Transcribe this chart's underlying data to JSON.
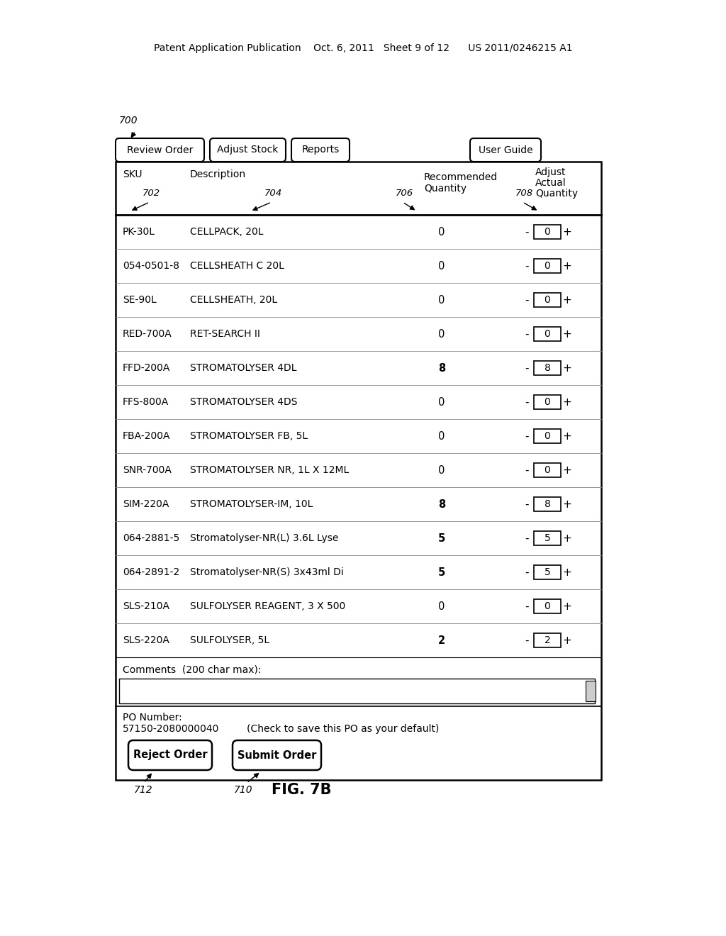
{
  "bg_color": "#ffffff",
  "figure_label": "FIG. 7B",
  "tab_labels": [
    "Review Order",
    "Adjust Stock",
    "Reports",
    "User Guide"
  ],
  "rows": [
    {
      "sku": "PK-30L",
      "desc": "CELLPACK, 20L",
      "qty": "0",
      "adj": "0"
    },
    {
      "sku": "054-0501-8",
      "desc": "CELLSHEATH C 20L",
      "qty": "0",
      "adj": "0"
    },
    {
      "sku": "SE-90L",
      "desc": "CELLSHEATH, 20L",
      "qty": "0",
      "adj": "0"
    },
    {
      "sku": "RED-700A",
      "desc": "RET-SEARCH II",
      "qty": "0",
      "adj": "0"
    },
    {
      "sku": "FFD-200A",
      "desc": "STROMATOLYSER 4DL",
      "qty": "8",
      "adj": "8"
    },
    {
      "sku": "FFS-800A",
      "desc": "STROMATOLYSER 4DS",
      "qty": "0",
      "adj": "0"
    },
    {
      "sku": "FBA-200A",
      "desc": "STROMATOLYSER FB, 5L",
      "qty": "0",
      "adj": "0"
    },
    {
      "sku": "SNR-700A",
      "desc": "STROMATOLYSER NR, 1L X 12ML",
      "qty": "0",
      "adj": "0"
    },
    {
      "sku": "SIM-220A",
      "desc": "STROMATOLYSER-IM, 10L",
      "qty": "8",
      "adj": "8"
    },
    {
      "sku": "064-2881-5",
      "desc": "Stromatolyser-NR(L) 3.6L Lyse",
      "qty": "5",
      "adj": "5"
    },
    {
      "sku": "064-2891-2",
      "desc": "Stromatolyser-NR(S) 3x43ml Di",
      "qty": "5",
      "adj": "5"
    },
    {
      "sku": "SLS-210A",
      "desc": "SULFOLYSER REAGENT, 3 X 500",
      "qty": "0",
      "adj": "0"
    },
    {
      "sku": "SLS-220A",
      "desc": "SULFOLYSER, 5L",
      "qty": "2",
      "adj": "2"
    }
  ],
  "comments_label": "Comments  (200 char max):",
  "po_label": "PO Number:",
  "po_number": "57150-2080000040",
  "po_check_text": "(Check to save this PO as your default)",
  "btn_reject": "Reject Order",
  "btn_submit": "Submit Order",
  "btn_reject_ref": "712",
  "btn_submit_ref": "710",
  "ref_700": "700",
  "ref_702": "702",
  "ref_704": "704",
  "ref_706": "706",
  "ref_708": "708"
}
